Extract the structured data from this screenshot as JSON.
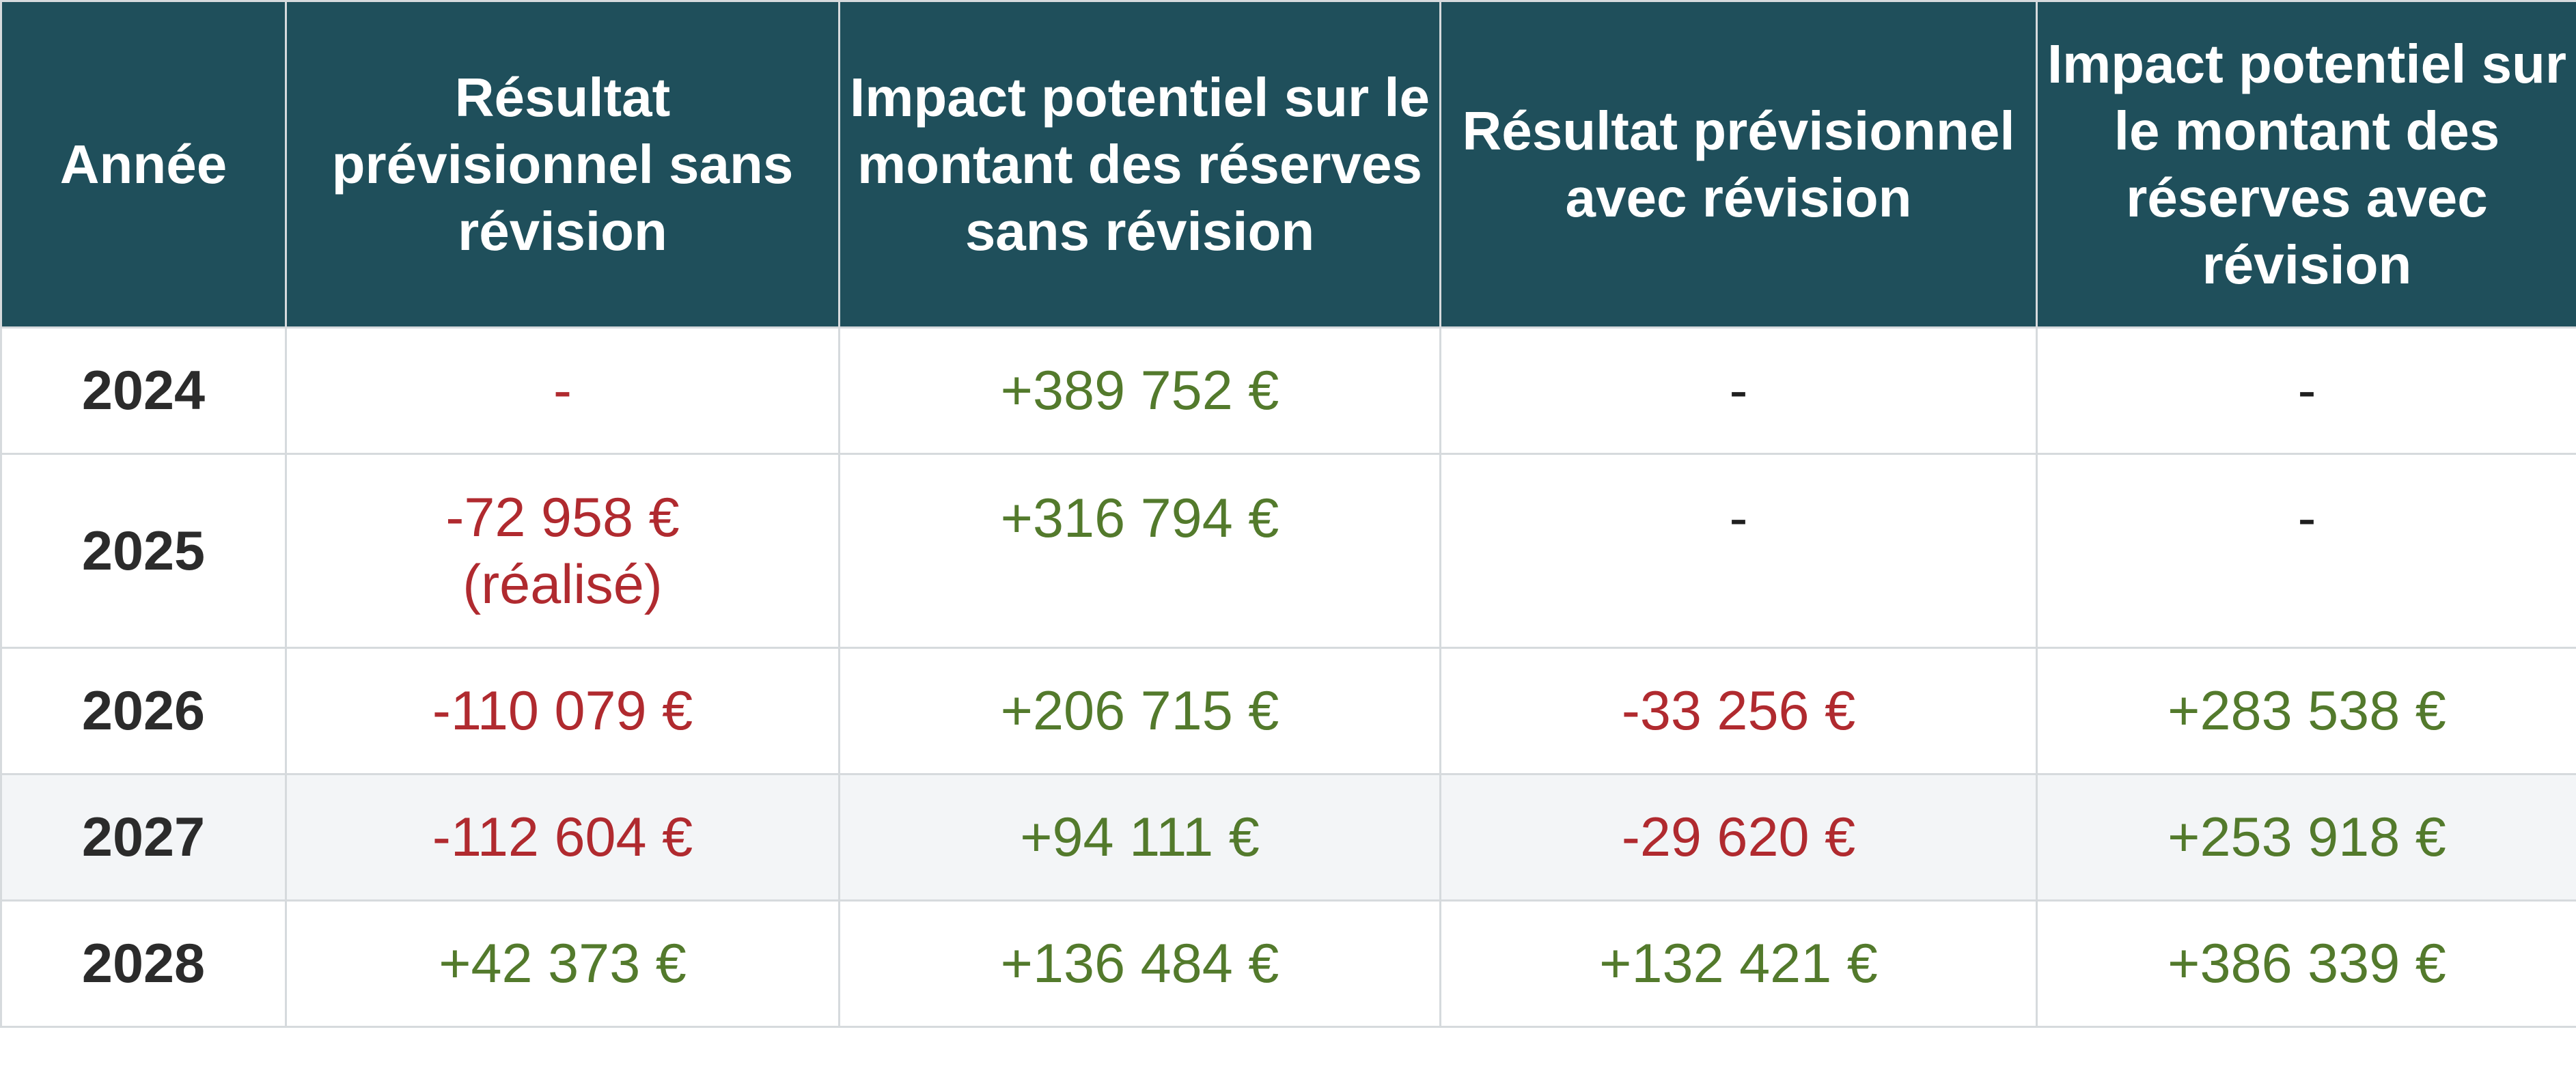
{
  "table": {
    "headers": [
      "Année",
      "Résultat prévisionnel sans révision",
      "Impact potentiel sur le montant des réserves sans révision",
      "Résultat prévisionnel avec révision",
      "Impact potentiel sur le montant des réserves avec révision"
    ],
    "rows": [
      {
        "year": "2024",
        "resultat_sans": "-",
        "impact_sans": "+389 752 €",
        "resultat_avec": "-",
        "impact_avec": "-"
      },
      {
        "year": "2025",
        "resultat_sans": "-72 958 €",
        "resultat_sans_note": "(réalisé)",
        "impact_sans": "+316 794 €",
        "resultat_avec": "-",
        "impact_avec": "-"
      },
      {
        "year": "2026",
        "resultat_sans": "-110 079 €",
        "impact_sans": "+206 715 €",
        "resultat_avec": "-33 256 €",
        "impact_avec": "+283 538 €"
      },
      {
        "year": "2027",
        "resultat_sans": "-112 604 €",
        "impact_sans": "+94 111 €",
        "resultat_avec": "-29 620 €",
        "impact_avec": "+253 918 €"
      },
      {
        "year": "2028",
        "resultat_sans": "+42 373 €",
        "impact_sans": "+136 484 €",
        "resultat_avec": "+132 421 €",
        "impact_avec": "+386 339 €"
      }
    ],
    "colors": {
      "header_bg": "#1f4f5b",
      "header_text": "#ffffff",
      "negative": "#b02a2f",
      "positive": "#537a2c",
      "shaded_row": "#f3f5f7",
      "border": "#d6dadd"
    }
  }
}
